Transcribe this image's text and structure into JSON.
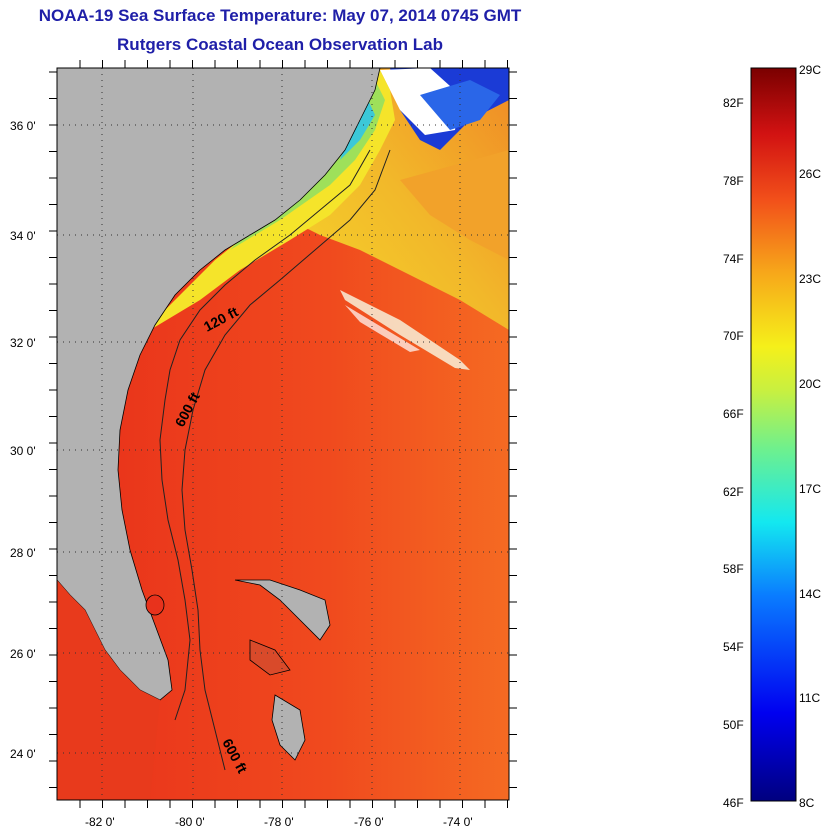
{
  "header": {
    "title": "NOAA-19 Sea Surface Temperature:  May 07, 2014 0745 GMT",
    "subtitle": "Rutgers Coastal Ocean Observation Lab"
  },
  "map": {
    "lat_labels": [
      "36 0'",
      "34 0'",
      "32 0'",
      "30 0'",
      "28 0'",
      "26 0'",
      "24 0'"
    ],
    "lon_labels": [
      "-82 0'",
      "-80 0'",
      "-78 0'",
      "-76 0'",
      "-74 0'"
    ],
    "contour_labels": [
      "120 ft",
      "600 ft",
      "600 ft"
    ],
    "colors": {
      "land": "#b2b2b2",
      "gulf_stream": "#e8321c",
      "ocean_warm": "#f25a1e",
      "shelf_cool": "#f2e630",
      "cold_water": "#1b3bd6",
      "cloud": "#ffffff"
    }
  },
  "colorbar": {
    "fahrenheit_labels": [
      "82F",
      "78F",
      "74F",
      "70F",
      "66F",
      "62F",
      "58F",
      "54F",
      "50F",
      "46F"
    ],
    "celsius_labels": [
      "29C",
      "26C",
      "23C",
      "20C",
      "17C",
      "14C",
      "11C",
      "8C"
    ],
    "range_c": [
      8,
      29
    ]
  }
}
